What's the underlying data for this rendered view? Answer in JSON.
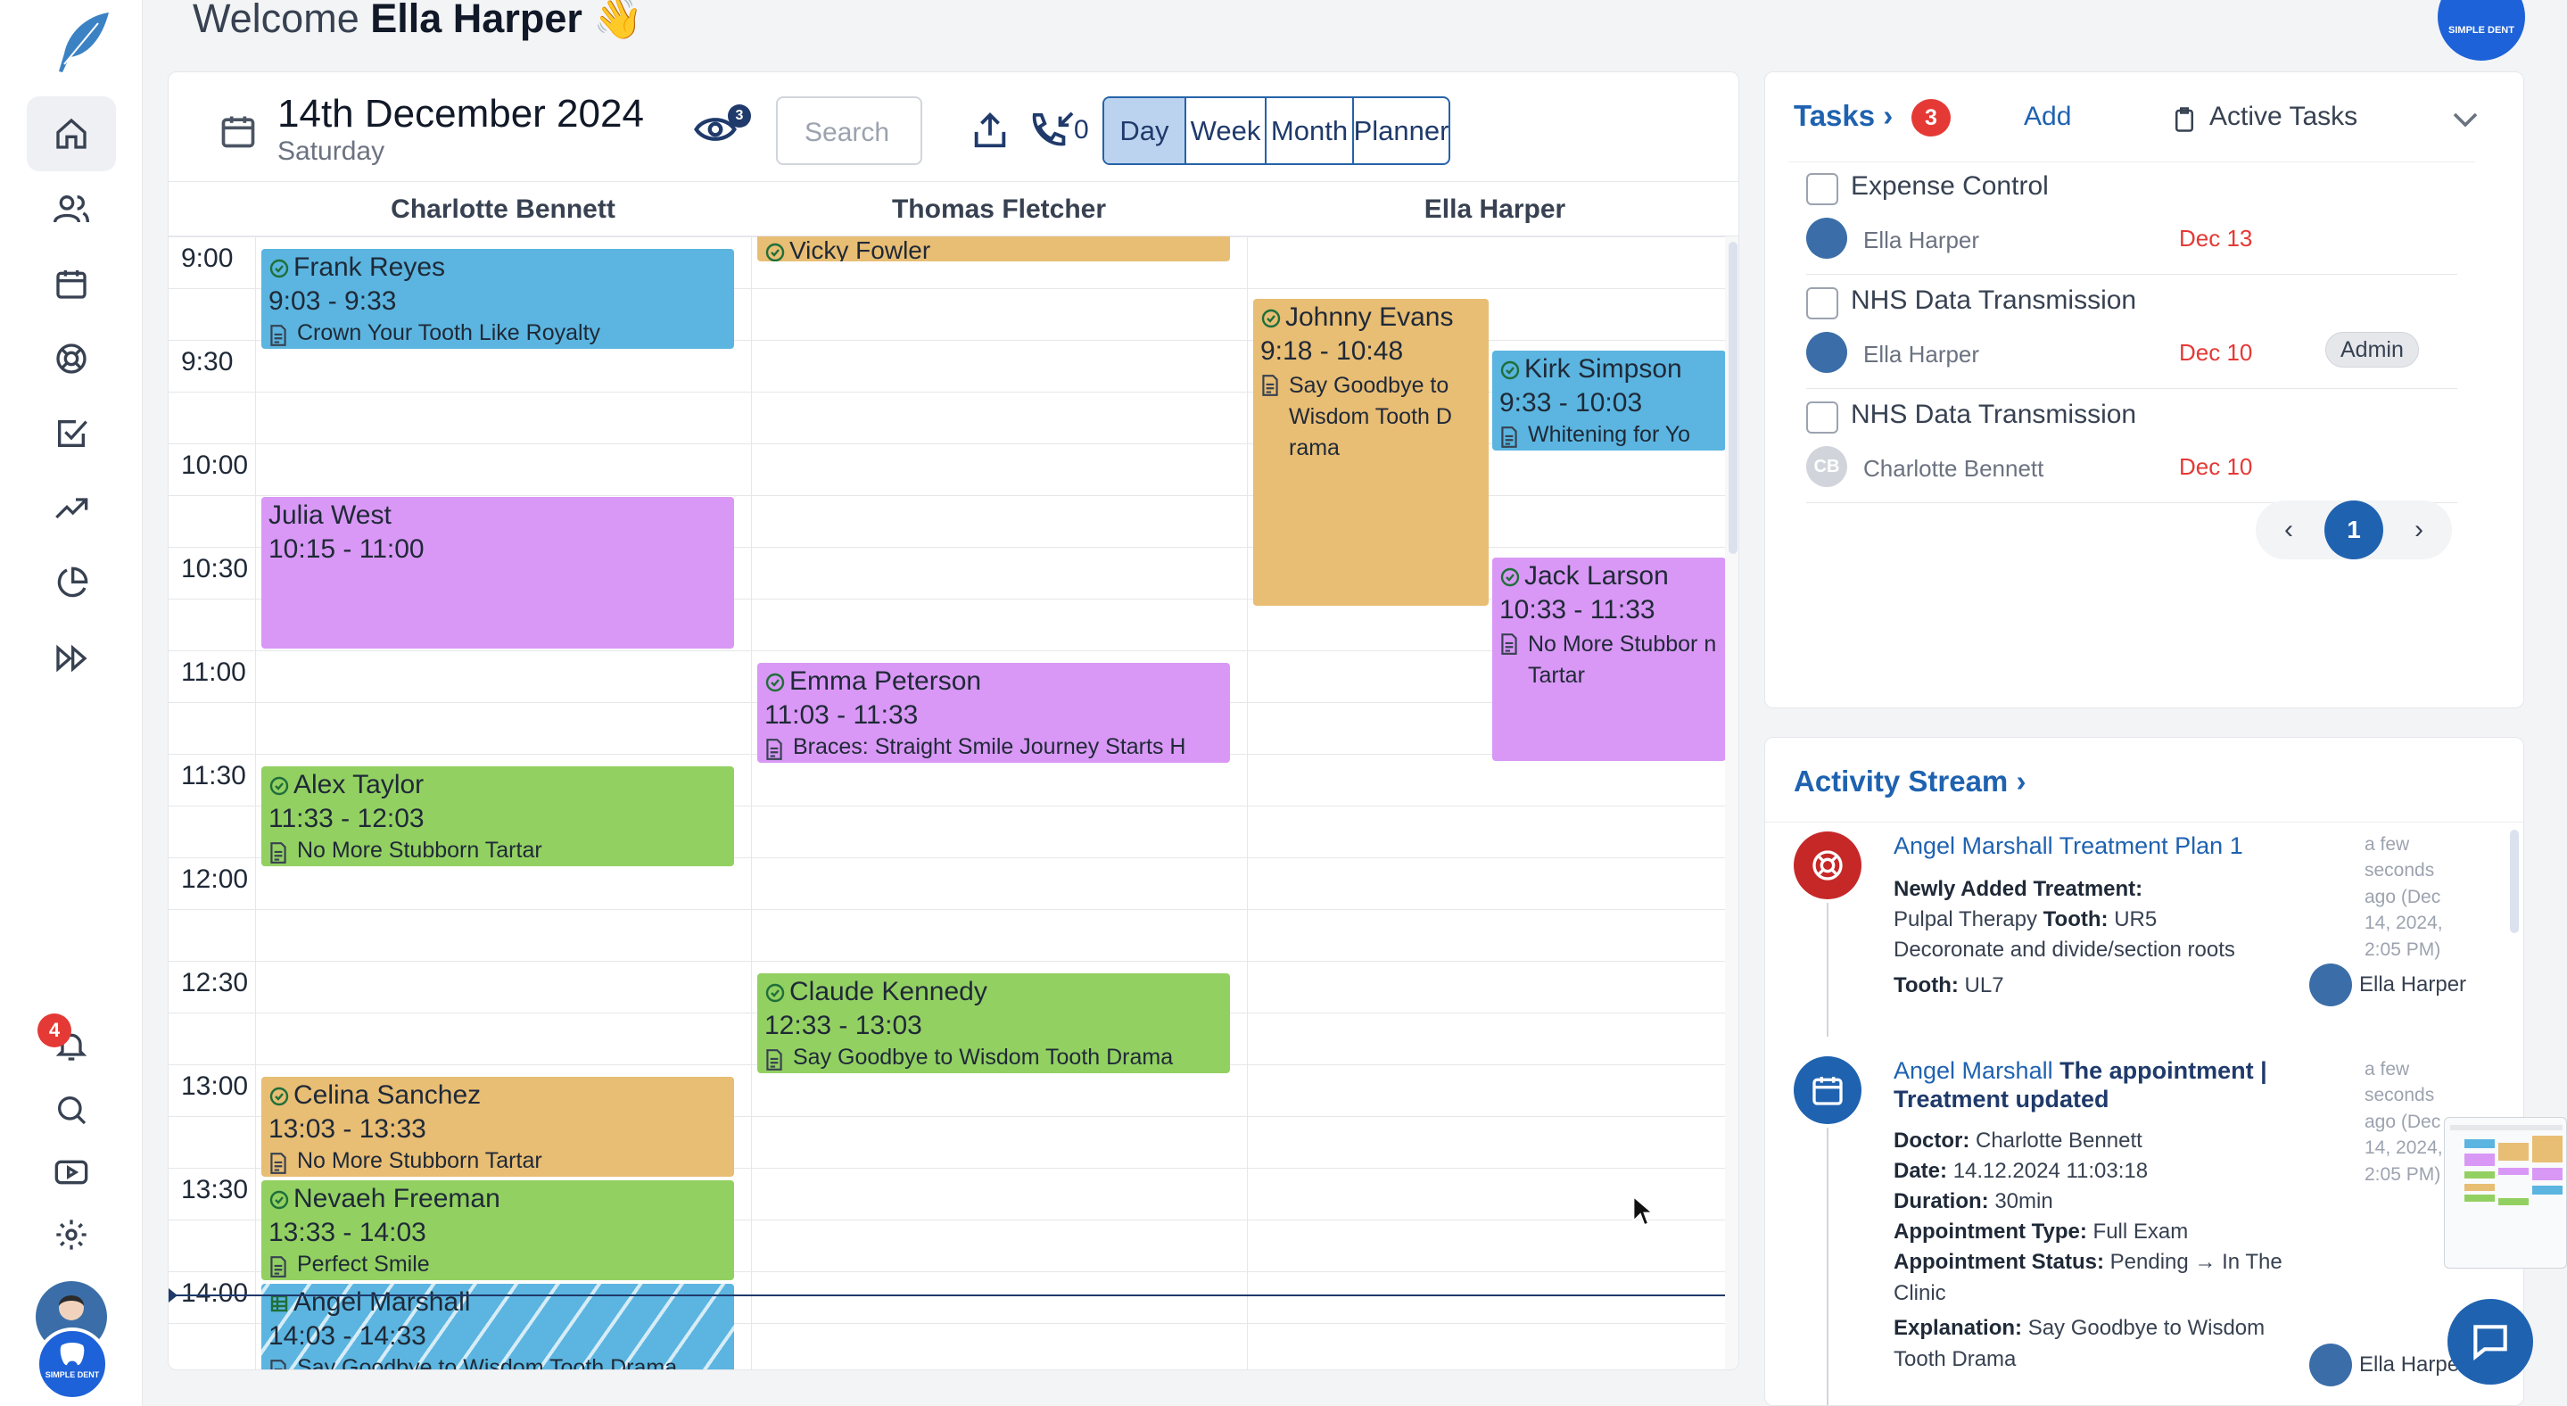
{
  "welcome": {
    "prefix": "Welcome",
    "name": "Ella Harper",
    "emoji": "👋"
  },
  "brand": {
    "label": "SIMPLE DENT"
  },
  "sidebar": {
    "items": [
      {
        "name": "home",
        "active": true
      },
      {
        "name": "patients"
      },
      {
        "name": "calendar"
      },
      {
        "name": "support"
      },
      {
        "name": "tasks"
      },
      {
        "name": "analytics"
      },
      {
        "name": "reports"
      },
      {
        "name": "fast-forward"
      }
    ],
    "notifications_count": "4"
  },
  "calendar": {
    "date": "14th December 2024",
    "weekday": "Saturday",
    "eye_count": "3",
    "search_placeholder": "Search",
    "phone_count": "0",
    "views": [
      "Day",
      "Week",
      "Month",
      "Planner"
    ],
    "active_view": "Day",
    "columns": [
      "Charlotte Bennett",
      "Thomas Fletcher",
      "Ella Harper"
    ],
    "times": [
      "9:00",
      "9:30",
      "10:00",
      "10:30",
      "11:00",
      "11:30",
      "12:00",
      "12:30",
      "13:00",
      "13:30",
      "14:00"
    ],
    "appointments": [
      {
        "name": "Frank Reyes",
        "time": "9:03 - 9:33",
        "desc": "Crown Your Tooth Like Royalty",
        "color": "#5bb5e0"
      },
      {
        "name": "Julia West",
        "time": "10:15 - 11:00",
        "desc": "",
        "color": "#d998f5"
      },
      {
        "name": "Alex Taylor",
        "time": "11:33 - 12:03",
        "desc": "No More Stubborn Tartar",
        "color": "#93d062"
      },
      {
        "name": "Celina Sanchez",
        "time": "13:03 - 13:33",
        "desc": "No More Stubborn Tartar",
        "color": "#e8bd74"
      },
      {
        "name": "Nevaeh Freeman",
        "time": "13:33 - 14:03",
        "desc": "Perfect Smile",
        "color": "#93d062"
      },
      {
        "name": "Angel Marshall",
        "time": "14:03 - 14:33",
        "desc": "Say Goodbye to Wisdom Tooth Drama",
        "color": "#5bb5e0"
      },
      {
        "name": "Vicky Fowler",
        "time": "",
        "desc": "",
        "color": "#e8bd74"
      },
      {
        "name": "Emma Peterson",
        "time": "11:03 - 11:33",
        "desc": "Braces: Straight Smile Journey Starts H",
        "color": "#d998f5"
      },
      {
        "name": "Claude Kennedy",
        "time": "12:33 - 13:03",
        "desc": "Say Goodbye to Wisdom Tooth Drama",
        "color": "#93d062"
      },
      {
        "name": "Johnny Evans",
        "time": "9:18 - 10:48",
        "desc": "Say Goodbye to Wisdom Tooth D rama",
        "color": "#e8bd74"
      },
      {
        "name": "Kirk Simpson",
        "time": "9:33 - 10:03",
        "desc": "Whitening for Yo",
        "color": "#5bb5e0"
      },
      {
        "name": "Jack Larson",
        "time": "10:33 - 11:33",
        "desc": "No More Stubbor n Tartar",
        "color": "#d998f5"
      }
    ]
  },
  "tasks": {
    "title": "Tasks",
    "count": "3",
    "add_label": "Add",
    "filter_label": "Active Tasks",
    "items": [
      {
        "title": "Expense Control",
        "assignee": "Ella Harper",
        "due": "Dec 13",
        "tag": ""
      },
      {
        "title": "NHS Data Transmission",
        "assignee": "Ella Harper",
        "due": "Dec 10",
        "tag": "Admin"
      },
      {
        "title": "NHS Data Transmission",
        "assignee": "Charlotte Bennett",
        "initials": "CB",
        "due": "Dec 10",
        "tag": ""
      }
    ],
    "page": "1"
  },
  "activity": {
    "title": "Activity Stream",
    "entries": [
      {
        "actor": "Angel Marshall",
        "action": "Treatment Plan 1",
        "time": "a few seconds ago (Dec 14, 2024, 2:05 PM)",
        "heading": "Newly Added Treatment:",
        "line1_label": "Tooth:",
        "line1_pre": "Pulpal Therapy",
        "line1_value": "UR5",
        "line2": "Decoronate and divide/section roots",
        "line3_label": "Tooth:",
        "line3_value": "UL7",
        "by": "Ella Harper"
      },
      {
        "actor": "Angel Marshall",
        "action": "The appointment | Treatment updated",
        "time": "a few seconds ago (Dec 14, 2024, 2:05 PM)",
        "doctor_label": "Doctor:",
        "doctor": "Charlotte Bennett",
        "date_label": "Date:",
        "date": "14.12.2024 11:03:18",
        "duration_label": "Duration:",
        "duration": "30min",
        "type_label": "Appointment Type:",
        "type": "Full Exam",
        "status_label": "Appointment Status:",
        "status": "Pending → In The Clinic",
        "expl_label": "Explanation:",
        "expl": "Say Goodbye to Wisdom Tooth Drama",
        "by": "Ella Harper"
      }
    ]
  },
  "colors": {
    "accent": "#1f62b0",
    "danger": "#e53935",
    "navy": "#1f3a6b"
  }
}
